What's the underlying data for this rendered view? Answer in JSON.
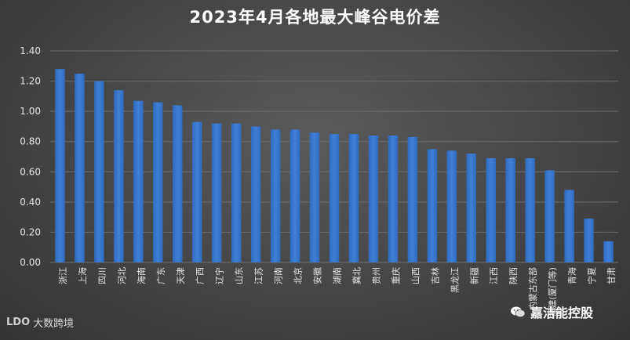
{
  "chart_data": {
    "type": "bar",
    "title": "2023年4月各地最大峰谷电价差",
    "xlabel": "",
    "ylabel": "",
    "ylim": [
      0,
      1.4
    ],
    "yticks": [
      "0.00",
      "0.20",
      "0.40",
      "0.60",
      "0.80",
      "1.00",
      "1.20",
      "1.40"
    ],
    "grid": true,
    "bar_color": "#3f7fd6",
    "categories": [
      "浙江",
      "上海",
      "四川",
      "河北",
      "海南",
      "广东",
      "天津",
      "广西",
      "辽宁",
      "山东",
      "江苏",
      "河南",
      "北京",
      "安徽",
      "湖南",
      "冀北",
      "贵州",
      "重庆",
      "山西",
      "吉林",
      "黑龙江",
      "新疆",
      "江西",
      "陕西",
      "内蒙古东部",
      "福建(厦门等)",
      "青海",
      "宁夏",
      "甘肃"
    ],
    "values": [
      1.28,
      1.25,
      1.2,
      1.14,
      1.07,
      1.06,
      1.04,
      0.93,
      0.92,
      0.92,
      0.9,
      0.88,
      0.88,
      0.86,
      0.85,
      0.85,
      0.84,
      0.84,
      0.83,
      0.75,
      0.74,
      0.72,
      0.69,
      0.69,
      0.69,
      0.61,
      0.48,
      0.29,
      0.14
    ]
  },
  "footer": {
    "source_logo_mark": "LDO",
    "source_label": "大数跨境",
    "wechat_account": "嘉洁能控股"
  }
}
